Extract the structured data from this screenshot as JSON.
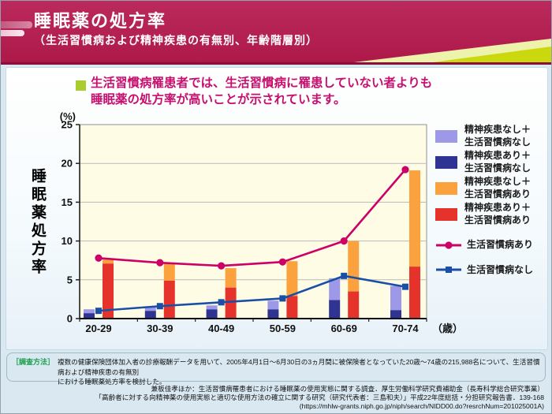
{
  "header": {
    "title": "睡眠薬の処方率",
    "subtitle": "（生活習慣病および精神疾患の有無別、年齢階層別）"
  },
  "message": {
    "line1": "生活習慣病罹患者では、生活習慣病に罹患していない者よりも",
    "line2": "睡眠薬の処方率が高いことが示されています。"
  },
  "chart_data": {
    "type": "bar",
    "title": "睡眠薬の処方率（生活習慣病および精神疾患の有無別、年齢階層別）",
    "categories": [
      "20-29",
      "30-39",
      "40-49",
      "50-59",
      "60-69",
      "70-74"
    ],
    "x_unit": "（歳）",
    "y_unit": "(%)",
    "ylabel": "睡眠薬処方率",
    "ylim": [
      0,
      25
    ],
    "ytick_step": 5,
    "grid": true,
    "legend_position": "right",
    "bar_stacks": [
      {
        "group": "生活習慣病なし",
        "segments": [
          {
            "name": "精神疾患あり＋生活習慣病なし",
            "color_key": "navy",
            "values": [
              0.7,
              1.0,
              1.2,
              1.2,
              2.4,
              1.1
            ]
          },
          {
            "name": "精神疾患なし＋生活習慣病なし",
            "color_key": "lavender",
            "values": [
              0.5,
              0.5,
              0.5,
              1.1,
              2.8,
              3.1
            ]
          }
        ]
      },
      {
        "group": "生活習慣病あり",
        "segments": [
          {
            "name": "精神疾患あり＋生活習慣病あり",
            "color_key": "red",
            "values": [
              7.1,
              4.9,
              4.0,
              2.9,
              3.5,
              6.7
            ]
          },
          {
            "name": "精神疾患なし＋生活習慣病あり",
            "color_key": "orange",
            "values": [
              0.5,
              2.2,
              2.5,
              4.5,
              6.5,
              12.4
            ]
          }
        ]
      }
    ],
    "line_series": [
      {
        "name": "生活習慣病あり",
        "color_key": "magenta",
        "marker": "circle",
        "values": [
          7.8,
          7.2,
          6.8,
          7.3,
          10.0,
          19.2
        ]
      },
      {
        "name": "生活習慣病なし",
        "color_key": "blue",
        "marker": "square",
        "values": [
          1.0,
          1.6,
          2.1,
          2.6,
          5.5,
          4.1
        ]
      }
    ]
  },
  "legend": {
    "items": [
      {
        "type": "swatch",
        "color_key": "lavender",
        "line1": "精神疾患なし＋",
        "line2": "生活習慣病なし"
      },
      {
        "type": "swatch",
        "color_key": "navy",
        "line1": "精神疾患あり＋",
        "line2": "生活習慣病なし"
      },
      {
        "type": "swatch",
        "color_key": "orange",
        "line1": "精神疾患なし＋",
        "line2": "生活習慣病あり"
      },
      {
        "type": "swatch",
        "color_key": "red",
        "line1": "精神疾患あり＋",
        "line2": "生活習慣病あり"
      },
      {
        "type": "line",
        "color_key": "magenta",
        "marker": "circle",
        "label": "生活習慣病あり"
      },
      {
        "type": "line",
        "color_key": "blue",
        "marker": "square",
        "label": "生活習慣病なし"
      }
    ]
  },
  "notes": {
    "method_label": "［調査方法］",
    "method_line1": "複数の健康保険団体加入者の診療報酬データを用いて、2005年4月1日～6月30日の3ヵ月間に被保険者となっていた20歳～74歳の215,988名について、生活習慣病および精神疾患の有無別",
    "method_line2": "における睡眠薬処方率を検討した。"
  },
  "citation": {
    "line1": "兼板佳孝ほか：生活習慣病罹患者における睡眠薬の使用実態に関する調査．厚生労働科学研究費補助金（長寿科学総合研究事業）",
    "line2": "「高齢者に対する向精神薬の使用実態と適切な使用方法の確立に関する研究（研究代表者：三島和夫）」平成22年度総括・分担研究報告書．139-168",
    "line3": "(https://mhlw-grants.niph.go.jp/niph/search/NIDD00.do?resrchNum=201025001A)"
  },
  "colors": {
    "lavender": "#9d99e8",
    "navy": "#2f3493",
    "orange": "#fba23e",
    "red": "#e5332c",
    "magenta": "#cc0066",
    "blue": "#1b4fa5",
    "plot_bg": "#fffce6",
    "grid": "#b9b9b9",
    "header_crimson": "#b01e4e",
    "accent_green": "#cbd80e",
    "bullet_green": "#a9cd2e",
    "message_text": "#c60f6e",
    "note_green": "#1fa050",
    "page_bg": "#d9e8f1"
  }
}
